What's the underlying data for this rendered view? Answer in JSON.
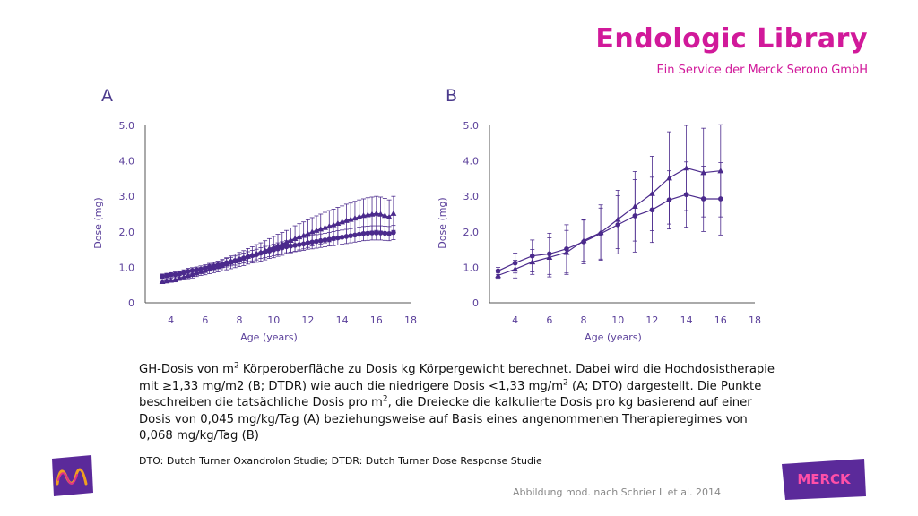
{
  "brand": {
    "title": "Endologic Library",
    "subtitle": "Ein Service der Merck Serono GmbH"
  },
  "panels": {
    "a": "A",
    "b": "B"
  },
  "caption": {
    "part1": "GH-Dosis von m",
    "sup1": "2",
    "part2": " Körperoberfläche zu Dosis kg Körpergewicht berechnet. Dabei wird die Hochdosistherapie mit ≥1,33 mg/m2 (B; DTDR) wie auch die niedrigere Dosis <1,33 mg/m",
    "sup2": "2",
    "part3": " (A; DTO) dargestellt. Die Punkte beschreiben die tatsächliche Dosis pro m",
    "sup3": "2",
    "part4": ", die Dreiecke die kalkulierte Dosis pro kg basierend auf einer Dosis von 0,045 mg/kg/Tag (A) beziehungsweise auf Basis eines angenommenen Therapieregimes von 0,068 mg/kg/Tag (B)"
  },
  "footnote": "DTO: Dutch Turner Oxandrolon Studie; DTDR: Dutch Turner Dose Response Studie",
  "source": "Abbildung mod. nach Schrier L et al. 2014",
  "logos": {
    "right": "MERCK"
  },
  "colors": {
    "brand": "#d1199a",
    "series": "#4b2a8c",
    "axis": "#555555"
  },
  "chart_data": [
    {
      "type": "line",
      "panel": "A",
      "xlabel": "Age (years)",
      "ylabel": "Dose (mg)",
      "xlim": [
        2.5,
        18
      ],
      "ylim": [
        0,
        5.0
      ],
      "xticks": [
        "4",
        "6",
        "8",
        "10",
        "12",
        "14",
        "16",
        "18"
      ],
      "yticks": [
        "0",
        "1.0",
        "2.0",
        "3.0",
        "4.0",
        "5.0"
      ],
      "series": [
        {
          "marker": "circle",
          "x": [
            3.5,
            3.75,
            4,
            4.25,
            4.5,
            4.75,
            5,
            5.25,
            5.5,
            5.75,
            6,
            6.25,
            6.5,
            6.75,
            7,
            7.25,
            7.5,
            7.75,
            8,
            8.25,
            8.5,
            8.75,
            9,
            9.25,
            9.5,
            9.75,
            10,
            10.25,
            10.5,
            10.75,
            11,
            11.25,
            11.5,
            11.75,
            12,
            12.25,
            12.5,
            12.75,
            13,
            13.25,
            13.5,
            13.75,
            14,
            14.25,
            14.5,
            14.75,
            15,
            15.25,
            15.5,
            15.75,
            16,
            16.25,
            16.5,
            16.75,
            17
          ],
          "y": [
            0.75,
            0.77,
            0.79,
            0.8,
            0.83,
            0.86,
            0.89,
            0.91,
            0.93,
            0.95,
            0.98,
            1.01,
            1.04,
            1.07,
            1.1,
            1.13,
            1.16,
            1.19,
            1.23,
            1.26,
            1.3,
            1.33,
            1.36,
            1.4,
            1.43,
            1.46,
            1.49,
            1.52,
            1.55,
            1.58,
            1.6,
            1.62,
            1.64,
            1.66,
            1.69,
            1.71,
            1.73,
            1.75,
            1.77,
            1.79,
            1.81,
            1.83,
            1.85,
            1.87,
            1.89,
            1.91,
            1.93,
            1.95,
            1.96,
            1.97,
            1.97,
            1.97,
            1.96,
            1.95,
            1.98
          ],
          "err": [
            0.06,
            0.06,
            0.06,
            0.07,
            0.07,
            0.07,
            0.08,
            0.08,
            0.08,
            0.09,
            0.09,
            0.1,
            0.1,
            0.1,
            0.11,
            0.12,
            0.12,
            0.13,
            0.13,
            0.14,
            0.14,
            0.15,
            0.15,
            0.15,
            0.16,
            0.16,
            0.16,
            0.17,
            0.17,
            0.17,
            0.17,
            0.18,
            0.18,
            0.18,
            0.18,
            0.19,
            0.19,
            0.19,
            0.19,
            0.19,
            0.2,
            0.2,
            0.2,
            0.2,
            0.2,
            0.2,
            0.2,
            0.2,
            0.2,
            0.2,
            0.2,
            0.2,
            0.2,
            0.2,
            0.2
          ]
        },
        {
          "marker": "triangle",
          "x": [
            3.5,
            3.75,
            4,
            4.25,
            4.5,
            4.75,
            5,
            5.25,
            5.5,
            5.75,
            6,
            6.25,
            6.5,
            6.75,
            7,
            7.25,
            7.5,
            7.75,
            8,
            8.25,
            8.5,
            8.75,
            9,
            9.25,
            9.5,
            9.75,
            10,
            10.25,
            10.5,
            10.75,
            11,
            11.25,
            11.5,
            11.75,
            12,
            12.25,
            12.5,
            12.75,
            13,
            13.25,
            13.5,
            13.75,
            14,
            14.25,
            14.5,
            14.75,
            15,
            15.25,
            15.5,
            15.75,
            16,
            16.25,
            16.5,
            16.75,
            17
          ],
          "y": [
            0.6,
            0.62,
            0.64,
            0.66,
            0.7,
            0.73,
            0.77,
            0.8,
            0.84,
            0.88,
            0.91,
            0.95,
            0.99,
            1.02,
            1.06,
            1.1,
            1.14,
            1.18,
            1.22,
            1.26,
            1.31,
            1.35,
            1.39,
            1.43,
            1.48,
            1.53,
            1.57,
            1.62,
            1.66,
            1.71,
            1.76,
            1.81,
            1.86,
            1.9,
            1.95,
            2.0,
            2.04,
            2.08,
            2.12,
            2.16,
            2.2,
            2.24,
            2.28,
            2.32,
            2.35,
            2.39,
            2.43,
            2.46,
            2.48,
            2.5,
            2.52,
            2.5,
            2.46,
            2.42,
            2.52
          ],
          "err": [
            0.05,
            0.06,
            0.06,
            0.07,
            0.07,
            0.08,
            0.09,
            0.1,
            0.1,
            0.11,
            0.12,
            0.13,
            0.14,
            0.15,
            0.16,
            0.17,
            0.18,
            0.19,
            0.2,
            0.21,
            0.22,
            0.23,
            0.25,
            0.26,
            0.27,
            0.28,
            0.3,
            0.31,
            0.32,
            0.33,
            0.35,
            0.36,
            0.37,
            0.38,
            0.39,
            0.4,
            0.41,
            0.42,
            0.43,
            0.44,
            0.44,
            0.45,
            0.45,
            0.46,
            0.46,
            0.47,
            0.47,
            0.47,
            0.48,
            0.48,
            0.48,
            0.48,
            0.48,
            0.48,
            0.48
          ]
        }
      ]
    },
    {
      "type": "line",
      "panel": "B",
      "xlabel": "Age (years)",
      "ylabel": "Dose (mg)",
      "xlim": [
        2.5,
        18
      ],
      "ylim": [
        0,
        5.0
      ],
      "xticks": [
        "4",
        "6",
        "8",
        "10",
        "12",
        "14",
        "16",
        "18"
      ],
      "yticks": [
        "0",
        "1.0",
        "2.0",
        "3.0",
        "4.0",
        "5.0"
      ],
      "series": [
        {
          "marker": "circle",
          "x": [
            3,
            4,
            5,
            6,
            7,
            8,
            9,
            10,
            11,
            12,
            13,
            14,
            15,
            16
          ],
          "y": [
            0.9,
            1.12,
            1.32,
            1.38,
            1.52,
            1.72,
            1.95,
            2.2,
            2.45,
            2.62,
            2.9,
            3.05,
            2.93,
            2.93
          ],
          "err": [
            0.1,
            0.28,
            0.45,
            0.58,
            0.68,
            0.62,
            0.72,
            0.82,
            1.02,
            0.92,
            0.82,
            0.92,
            0.92,
            1.02
          ]
        },
        {
          "marker": "triangle",
          "x": [
            3,
            4,
            5,
            6,
            7,
            8,
            9,
            10,
            11,
            12,
            13,
            14,
            15,
            16
          ],
          "y": [
            0.77,
            0.95,
            1.15,
            1.28,
            1.42,
            1.75,
            1.98,
            2.35,
            2.72,
            3.08,
            3.52,
            3.8,
            3.67,
            3.72
          ],
          "err": [
            0.08,
            0.25,
            0.35,
            0.55,
            0.62,
            0.58,
            0.78,
            0.82,
            0.98,
            1.05,
            1.3,
            1.2,
            1.25,
            1.3
          ]
        }
      ]
    }
  ]
}
